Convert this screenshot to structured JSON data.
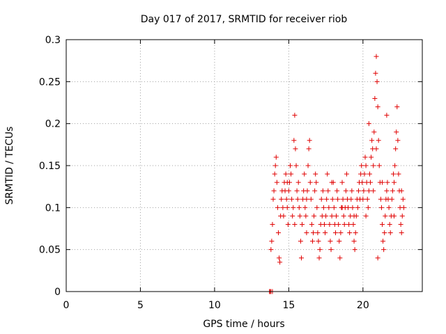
{
  "chart_data": {
    "type": "scatter",
    "title": "Day 017 of 2017, SRMTID for receiver riob",
    "xlabel": "GPS time / hours",
    "ylabel": "SRMTID / TECUs",
    "xlim": [
      0,
      24
    ],
    "ylim": [
      0,
      0.3
    ],
    "xticks": [
      "0",
      "5",
      "10",
      "15",
      "20"
    ],
    "xtick_values": [
      0,
      5,
      10,
      15,
      20
    ],
    "yticks": [
      "0",
      "0.05",
      "0.1",
      "0.15",
      "0.2",
      "0.25",
      "0.3"
    ],
    "ytick_values": [
      0,
      0.05,
      0.1,
      0.15,
      0.2,
      0.25,
      0.3
    ],
    "grid": true,
    "marker": "plus",
    "color": "#e00000",
    "series": [
      {
        "points": [
          [
            13.7,
            0.0
          ],
          [
            13.8,
            0.0
          ],
          [
            13.9,
            0.0
          ],
          [
            13.75,
            0.0
          ],
          [
            13.8,
            0.05
          ],
          [
            13.85,
            0.06
          ],
          [
            13.9,
            0.08
          ],
          [
            13.95,
            0.11
          ],
          [
            14.0,
            0.12
          ],
          [
            14.05,
            0.14
          ],
          [
            14.1,
            0.15
          ],
          [
            14.15,
            0.16
          ],
          [
            14.2,
            0.13
          ],
          [
            14.25,
            0.1
          ],
          [
            14.3,
            0.07
          ],
          [
            14.35,
            0.04
          ],
          [
            14.4,
            0.035
          ],
          [
            14.45,
            0.09
          ],
          [
            14.5,
            0.11
          ],
          [
            14.55,
            0.12
          ],
          [
            14.6,
            0.1
          ],
          [
            14.65,
            0.09
          ],
          [
            14.7,
            0.13
          ],
          [
            14.75,
            0.12
          ],
          [
            14.8,
            0.14
          ],
          [
            14.85,
            0.11
          ],
          [
            14.9,
            0.1
          ],
          [
            14.95,
            0.08
          ],
          [
            15.0,
            0.12
          ],
          [
            15.05,
            0.13
          ],
          [
            15.1,
            0.15
          ],
          [
            15.15,
            0.14
          ],
          [
            15.2,
            0.11
          ],
          [
            15.25,
            0.09
          ],
          [
            15.3,
            0.1
          ],
          [
            15.35,
            0.18
          ],
          [
            15.4,
            0.21
          ],
          [
            15.45,
            0.17
          ],
          [
            15.5,
            0.15
          ],
          [
            15.55,
            0.12
          ],
          [
            15.6,
            0.11
          ],
          [
            15.65,
            0.13
          ],
          [
            15.7,
            0.1
          ],
          [
            15.75,
            0.09
          ],
          [
            15.8,
            0.06
          ],
          [
            15.85,
            0.04
          ],
          [
            15.9,
            0.08
          ],
          [
            15.95,
            0.11
          ],
          [
            16.0,
            0.12
          ],
          [
            16.05,
            0.14
          ],
          [
            16.1,
            0.1
          ],
          [
            16.15,
            0.09
          ],
          [
            16.2,
            0.07
          ],
          [
            16.25,
            0.12
          ],
          [
            16.3,
            0.15
          ],
          [
            16.35,
            0.17
          ],
          [
            16.4,
            0.18
          ],
          [
            16.45,
            0.13
          ],
          [
            16.5,
            0.11
          ],
          [
            16.55,
            0.08
          ],
          [
            16.6,
            0.06
          ],
          [
            16.65,
            0.07
          ],
          [
            16.7,
            0.09
          ],
          [
            16.75,
            0.12
          ],
          [
            16.8,
            0.14
          ],
          [
            16.85,
            0.13
          ],
          [
            16.9,
            0.1
          ],
          [
            16.95,
            0.07
          ],
          [
            17.0,
            0.06
          ],
          [
            17.05,
            0.04
          ],
          [
            17.1,
            0.05
          ],
          [
            17.15,
            0.08
          ],
          [
            17.2,
            0.11
          ],
          [
            17.25,
            0.09
          ],
          [
            17.3,
            0.12
          ],
          [
            17.35,
            0.1
          ],
          [
            17.4,
            0.08
          ],
          [
            17.45,
            0.07
          ],
          [
            17.5,
            0.09
          ],
          [
            17.55,
            0.11
          ],
          [
            17.6,
            0.14
          ],
          [
            17.65,
            0.12
          ],
          [
            17.7,
            0.1
          ],
          [
            17.75,
            0.08
          ],
          [
            17.8,
            0.06
          ],
          [
            17.85,
            0.05
          ],
          [
            17.9,
            0.09
          ],
          [
            17.95,
            0.11
          ],
          [
            18.0,
            0.13
          ],
          [
            18.05,
            0.1
          ],
          [
            18.1,
            0.08
          ],
          [
            18.15,
            0.07
          ],
          [
            18.2,
            0.09
          ],
          [
            18.25,
            0.12
          ],
          [
            18.3,
            0.11
          ],
          [
            18.35,
            0.08
          ],
          [
            18.4,
            0.06
          ],
          [
            18.45,
            0.04
          ],
          [
            18.5,
            0.07
          ],
          [
            18.55,
            0.1
          ],
          [
            18.6,
            0.13
          ],
          [
            18.65,
            0.11
          ],
          [
            18.7,
            0.09
          ],
          [
            18.75,
            0.08
          ],
          [
            18.8,
            0.1
          ],
          [
            18.85,
            0.12
          ],
          [
            18.9,
            0.14
          ],
          [
            18.95,
            0.11
          ],
          [
            19.0,
            0.1
          ],
          [
            19.05,
            0.08
          ],
          [
            19.1,
            0.07
          ],
          [
            19.15,
            0.09
          ],
          [
            19.2,
            0.11
          ],
          [
            19.25,
            0.12
          ],
          [
            19.3,
            0.1
          ],
          [
            19.35,
            0.08
          ],
          [
            19.4,
            0.06
          ],
          [
            19.45,
            0.05
          ],
          [
            19.5,
            0.07
          ],
          [
            19.55,
            0.09
          ],
          [
            19.6,
            0.11
          ],
          [
            19.65,
            0.1
          ],
          [
            19.7,
            0.12
          ],
          [
            19.75,
            0.13
          ],
          [
            19.8,
            0.11
          ],
          [
            19.85,
            0.14
          ],
          [
            19.9,
            0.15
          ],
          [
            19.95,
            0.13
          ],
          [
            20.0,
            0.11
          ],
          [
            20.05,
            0.12
          ],
          [
            20.1,
            0.14
          ],
          [
            20.15,
            0.16
          ],
          [
            20.2,
            0.15
          ],
          [
            20.25,
            0.13
          ],
          [
            20.3,
            0.11
          ],
          [
            20.35,
            0.1
          ],
          [
            20.4,
            0.12
          ],
          [
            20.45,
            0.14
          ],
          [
            20.5,
            0.13
          ],
          [
            20.55,
            0.16
          ],
          [
            20.6,
            0.18
          ],
          [
            20.65,
            0.17
          ],
          [
            20.7,
            0.15
          ],
          [
            20.75,
            0.19
          ],
          [
            20.8,
            0.23
          ],
          [
            20.85,
            0.26
          ],
          [
            20.9,
            0.28
          ],
          [
            20.95,
            0.25
          ],
          [
            21.0,
            0.22
          ],
          [
            21.05,
            0.18
          ],
          [
            21.1,
            0.15
          ],
          [
            21.15,
            0.13
          ],
          [
            21.2,
            0.11
          ],
          [
            21.25,
            0.1
          ],
          [
            21.3,
            0.08
          ],
          [
            21.35,
            0.06
          ],
          [
            21.4,
            0.05
          ],
          [
            21.45,
            0.07
          ],
          [
            21.5,
            0.09
          ],
          [
            21.55,
            0.11
          ],
          [
            21.6,
            0.12
          ],
          [
            21.65,
            0.13
          ],
          [
            21.7,
            0.11
          ],
          [
            21.75,
            0.1
          ],
          [
            21.8,
            0.08
          ],
          [
            21.85,
            0.07
          ],
          [
            21.9,
            0.09
          ],
          [
            21.95,
            0.11
          ],
          [
            22.0,
            0.12
          ],
          [
            22.05,
            0.14
          ],
          [
            22.1,
            0.13
          ],
          [
            22.15,
            0.15
          ],
          [
            22.2,
            0.17
          ],
          [
            22.25,
            0.19
          ],
          [
            22.3,
            0.22
          ],
          [
            22.35,
            0.18
          ],
          [
            22.4,
            0.14
          ],
          [
            22.45,
            0.12
          ],
          [
            22.5,
            0.1
          ],
          [
            22.55,
            0.08
          ],
          [
            22.6,
            0.07
          ],
          [
            22.65,
            0.09
          ],
          [
            22.7,
            0.11
          ],
          [
            22.75,
            0.1
          ],
          [
            20.4,
            0.2
          ],
          [
            20.9,
            0.17
          ],
          [
            21.6,
            0.21
          ],
          [
            20.2,
            0.09
          ],
          [
            21.0,
            0.04
          ],
          [
            14.9,
            0.13
          ],
          [
            15.4,
            0.08
          ],
          [
            16.2,
            0.11
          ],
          [
            17.9,
            0.13
          ],
          [
            18.6,
            0.1
          ],
          [
            19.4,
            0.09
          ],
          [
            20.7,
            0.12
          ],
          [
            21.3,
            0.13
          ],
          [
            22.1,
            0.09
          ],
          [
            22.6,
            0.12
          ]
        ]
      }
    ]
  }
}
